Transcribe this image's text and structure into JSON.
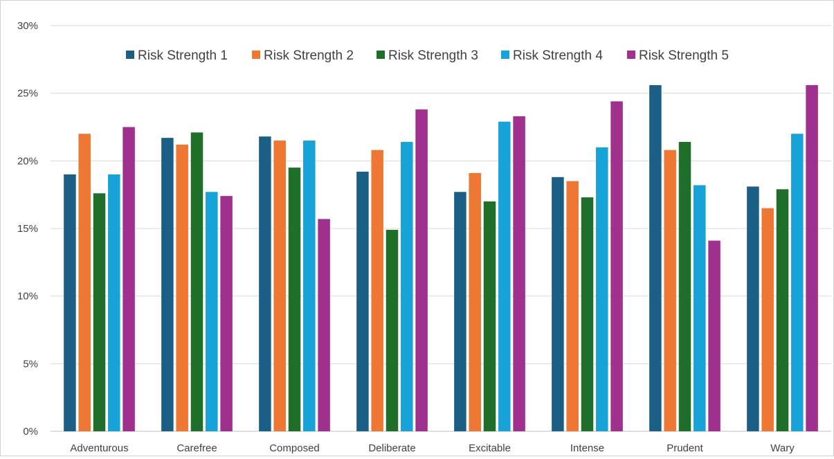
{
  "chart_data": {
    "type": "bar",
    "title": "",
    "xlabel": "",
    "ylabel": "",
    "categories": [
      "Adventurous",
      "Carefree",
      "Composed",
      "Deliberate",
      "Excitable",
      "Intense",
      "Prudent",
      "Wary"
    ],
    "series": [
      {
        "name": "Risk Strength 1",
        "color": "#1b5e86",
        "values": [
          19.0,
          21.7,
          21.8,
          19.2,
          17.7,
          18.8,
          25.6,
          18.1
        ]
      },
      {
        "name": "Risk Strength 2",
        "color": "#ee7833",
        "values": [
          22.0,
          21.2,
          21.5,
          20.8,
          19.1,
          18.5,
          20.8,
          16.5
        ]
      },
      {
        "name": "Risk Strength 3",
        "color": "#1f6f2b",
        "values": [
          17.6,
          22.1,
          19.5,
          14.9,
          17.0,
          17.3,
          21.4,
          17.9
        ]
      },
      {
        "name": "Risk Strength 4",
        "color": "#17a2d8",
        "values": [
          19.0,
          17.7,
          21.5,
          21.4,
          22.9,
          21.0,
          18.2,
          22.0
        ]
      },
      {
        "name": "Risk Strength 5",
        "color": "#a0308e",
        "values": [
          22.5,
          17.4,
          15.7,
          23.8,
          23.3,
          24.4,
          14.1,
          25.6
        ]
      }
    ],
    "ylim": [
      0,
      30
    ],
    "yticks": [
      0,
      5,
      10,
      15,
      20,
      25,
      30
    ],
    "ytick_labels": [
      "0%",
      "5%",
      "10%",
      "15%",
      "20%",
      "25%",
      "30%"
    ],
    "grid": true,
    "legend_position": "top-center"
  }
}
